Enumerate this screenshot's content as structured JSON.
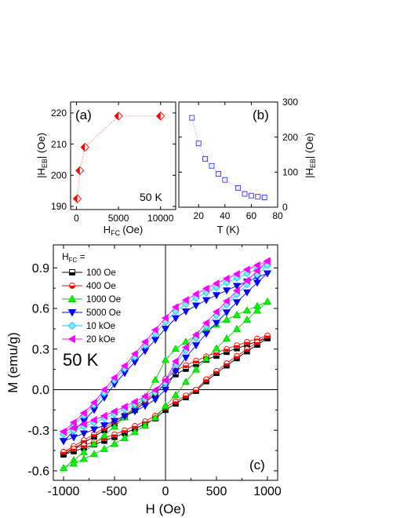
{
  "chart_data": [
    {
      "panel": "(a)",
      "type": "line",
      "annotation": "50 K",
      "xlabel_main": "H",
      "xlabel_sub": "FC",
      "xlabel_unit": "(Oe)",
      "ylabel_pre": "|H",
      "ylabel_sub": "EB",
      "ylabel_post": "| (Oe)",
      "xlim": [
        -700,
        11800
      ],
      "ylim": [
        189,
        223.5
      ],
      "xticks": [
        0,
        5000,
        10000
      ],
      "xticklabels": [
        "0",
        "5000",
        "10000"
      ],
      "yticks": [
        190,
        200,
        210,
        220
      ],
      "yticklabels": [
        "190",
        "200",
        "210",
        "220"
      ],
      "series": [
        {
          "x": [
            100,
            400,
            1000,
            5000,
            10000
          ],
          "y": [
            192.5,
            201.5,
            209,
            219,
            219
          ],
          "marker": "diamond-half",
          "color": "#ff0000"
        }
      ]
    },
    {
      "panel": "(b)",
      "type": "scatter",
      "xlabel": "T (K)",
      "ylabel_pre": "|H",
      "ylabel_sub": "EB",
      "ylabel_post": "| (Oe)",
      "xlim": [
        5,
        80
      ],
      "ylim": [
        0,
        300
      ],
      "xticks": [
        20,
        40,
        60,
        80
      ],
      "xticklabels": [
        "20",
        "40",
        "60",
        "80"
      ],
      "yticks": [
        0,
        100,
        200,
        300
      ],
      "yticklabels": [
        "0",
        "100",
        "200",
        "300"
      ],
      "series": [
        {
          "x": [
            15,
            20,
            25,
            30,
            35,
            40,
            50,
            55,
            60,
            65,
            70
          ],
          "y": [
            255,
            182,
            138,
            118,
            95,
            78,
            55,
            38,
            33,
            30,
            28
          ],
          "marker": "open-square",
          "color": "#3030ff"
        }
      ]
    },
    {
      "panel": "(c)",
      "type": "line",
      "annotation": "50 K",
      "xlabel": "H (Oe)",
      "ylabel": "M (emu/g)",
      "legend_title_main": "H",
      "legend_title_sub": "FC",
      "legend_title_post": " =",
      "xlim": [
        -1100,
        1100
      ],
      "ylim": [
        -0.67,
        1.07
      ],
      "xticks": [
        -1000,
        -500,
        0,
        500,
        1000
      ],
      "xticklabels": [
        "-1000",
        "-500",
        "0",
        "500",
        "1000"
      ],
      "yticks": [
        -0.6,
        -0.3,
        0.0,
        0.3,
        0.6,
        0.9
      ],
      "yticklabels": [
        "-0.6",
        "-0.3",
        "0.0",
        "0.3",
        "0.6",
        "0.9"
      ],
      "series": [
        {
          "name": "100 Oe",
          "color": "#000000",
          "fill": "#000000",
          "marker": "square-half",
          "M_max": 0.38,
          "M_min": -0.48,
          "Mr_upper": 0.05,
          "Mr_lower": -0.15,
          "Hc_left": -60,
          "Hc_right": 320
        },
        {
          "name": "400 Oe",
          "color": "#ff0000",
          "fill": "#ff0000",
          "marker": "circle-half",
          "M_max": 0.4,
          "M_min": -0.46,
          "Mr_upper": 0.08,
          "Mr_lower": -0.13,
          "Hc_left": -80,
          "Hc_right": 300
        },
        {
          "name": "1000 Oe",
          "color": "#00cc00",
          "fill": "#00ff00",
          "marker": "triangle-up",
          "M_max": 0.65,
          "M_min": -0.58,
          "Mr_upper": 0.22,
          "Mr_lower": -0.12,
          "Hc_left": -150,
          "Hc_right": 150
        },
        {
          "name": "5000 Oe",
          "color": "#0000ff",
          "fill": "#0000ff",
          "marker": "triangle-down",
          "M_max": 0.86,
          "M_min": -0.38,
          "Mr_upper": 0.45,
          "Mr_lower": 0.0,
          "Hc_left": -550,
          "Hc_right": 0
        },
        {
          "name": "10 kOe",
          "color": "#00ccff",
          "fill": "#88e8ff",
          "marker": "diamond",
          "M_max": 0.92,
          "M_min": -0.33,
          "Mr_upper": 0.5,
          "Mr_lower": 0.05,
          "Hc_left": -580,
          "Hc_right": -30
        },
        {
          "name": "20 kOe",
          "color": "#ff00ff",
          "fill": "#ff00ff",
          "marker": "triangle-left",
          "M_max": 0.95,
          "M_min": -0.31,
          "Mr_upper": 0.53,
          "Mr_lower": 0.07,
          "Hc_left": -600,
          "Hc_right": -40
        }
      ]
    }
  ]
}
